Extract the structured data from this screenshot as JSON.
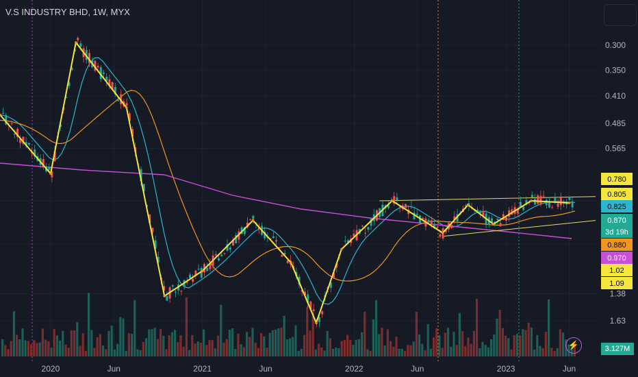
{
  "title": "V.S INDUSTRY BHD, 1W, MYX",
  "colors": {
    "background": "#161a25",
    "up": "#26a69a",
    "down": "#ef5350",
    "zigzag": "#f5e63d",
    "ma_teal": "#29b6d1",
    "ma_orange": "#f0961e",
    "ma_magenta": "#c84fd8",
    "channel": "#e6d96a",
    "vline_purple": "#9c44c0",
    "vline_orange": "#e08a1e",
    "vline_teal": "#26a69a"
  },
  "price_axis": {
    "labels": [
      "0.300",
      "0.350",
      "0.410",
      "0.485",
      "0.565",
      "1.38",
      "1.63"
    ]
  },
  "time_axis": {
    "labels": [
      "2020",
      "Jun",
      "2021",
      "Jun",
      "2022",
      "Jun",
      "2023",
      "Jun"
    ]
  },
  "price_tags": [
    {
      "text": "0.780",
      "bg": "#f5e63d",
      "fg": "#000000"
    },
    {
      "text": "0.805",
      "bg": "#f5e63d",
      "fg": "#000000"
    },
    {
      "text": "0.825",
      "bg": "#29b6d1",
      "fg": "#000000"
    },
    {
      "text": "0.870",
      "bg": "#22ab94",
      "fg": "#ffffff"
    },
    {
      "text": "3d 19h",
      "bg": "#22ab94",
      "fg": "#ffffff"
    },
    {
      "text": "0.880",
      "bg": "#f0961e",
      "fg": "#000000"
    },
    {
      "text": "0.970",
      "bg": "#c84fd8",
      "fg": "#ffffff"
    },
    {
      "text": "1.02",
      "bg": "#f5e63d",
      "fg": "#000000"
    },
    {
      "text": "1.09",
      "bg": "#f5e63d",
      "fg": "#000000"
    }
  ],
  "volume_label": "3.127M",
  "chart_data": {
    "type": "line",
    "title": "V.S INDUSTRY BHD, 1W, MYX",
    "scale": "inverted",
    "x_range": [
      "2019-09",
      "2023-07"
    ],
    "zigzag": {
      "name": "zigzag",
      "points": [
        [
          "2019-09",
          0.46
        ],
        [
          "2020-01",
          0.66
        ],
        [
          "2020-03",
          0.295
        ],
        [
          "2020-07",
          0.44
        ],
        [
          "2020-10",
          1.4
        ],
        [
          "2021-01",
          1.2
        ],
        [
          "2021-05",
          0.88
        ],
        [
          "2021-08",
          1.14
        ],
        [
          "2021-10",
          1.65
        ],
        [
          "2021-12",
          1.05
        ],
        [
          "2022-04",
          0.78
        ],
        [
          "2022-08",
          0.95
        ],
        [
          "2022-10",
          0.8
        ],
        [
          "2022-12",
          0.9
        ],
        [
          "2023-03",
          0.78
        ],
        [
          "2023-06",
          0.79
        ]
      ]
    },
    "channel": {
      "upper": [
        [
          "2022-03",
          0.78
        ],
        [
          "2023-07",
          0.76
        ]
      ],
      "lower": [
        [
          "2022-08",
          0.97
        ],
        [
          "2023-07",
          0.88
        ]
      ]
    },
    "last_close": 0.87
  }
}
